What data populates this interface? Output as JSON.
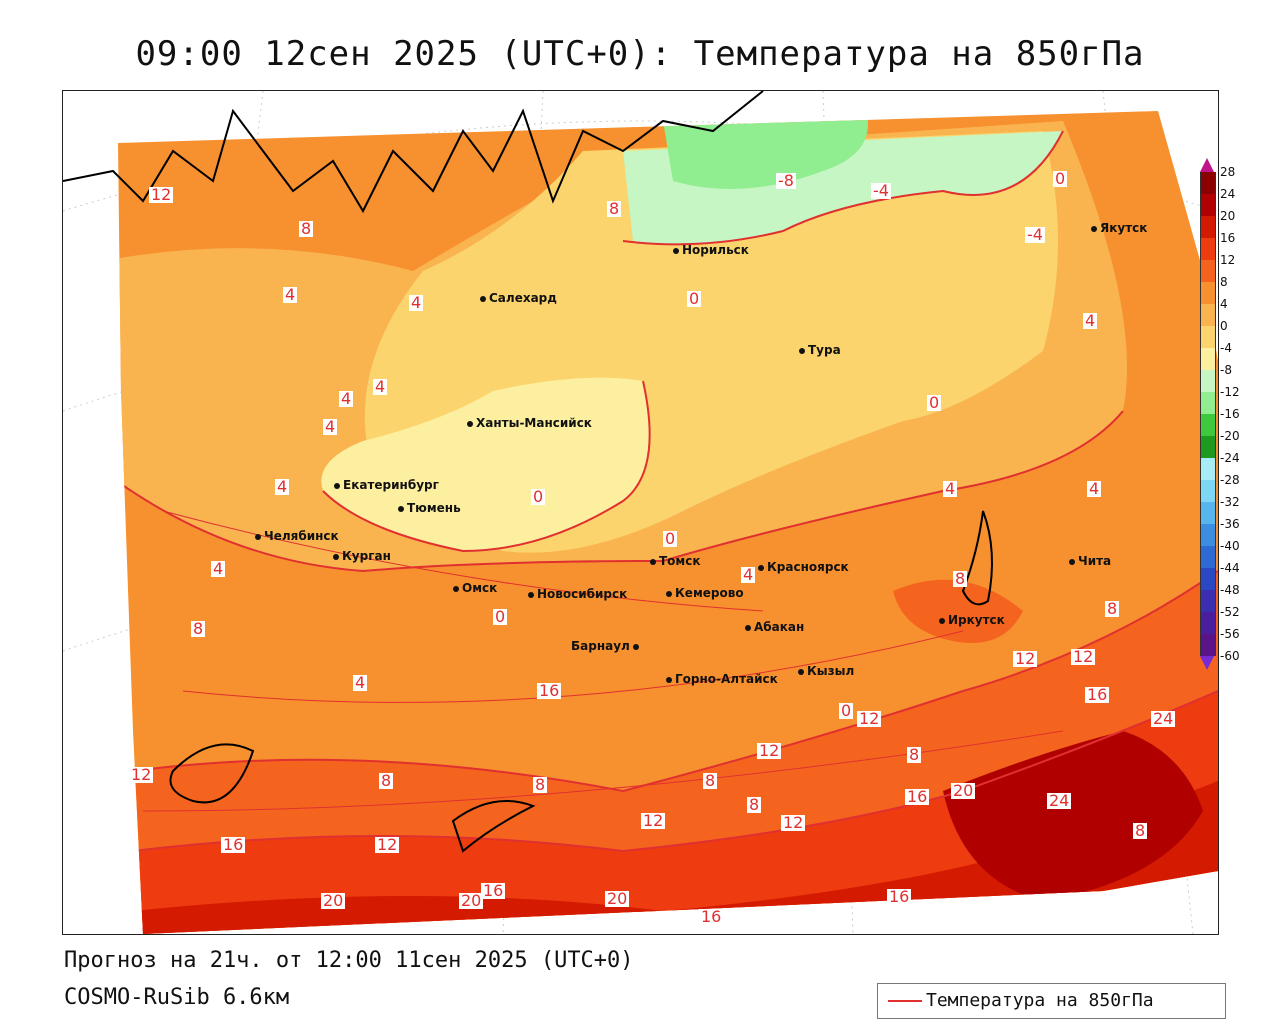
{
  "title": "09:00 12сен 2025 (UTC+0): Температура на 850гПа",
  "forecast_line": "Прогноз на 21ч. от 12:00 11сен 2025 (UTC+0)",
  "model_line": "COSMO-RuSib 6.6км",
  "legend": {
    "label": "Температура на 850гПа",
    "line_color": "#e03030"
  },
  "colorbar": {
    "ticks": [
      "28",
      "24",
      "20",
      "16",
      "12",
      "8",
      "4",
      "0",
      "-4",
      "-8",
      "-12",
      "-16",
      "-20",
      "-24",
      "-28",
      "-32",
      "-36",
      "-40",
      "-44",
      "-48",
      "-52",
      "-56",
      "-60"
    ],
    "colors": [
      "#8b0000",
      "#b00000",
      "#d41a00",
      "#ee3b10",
      "#f4641e",
      "#f7902e",
      "#f9b450",
      "#fbd46e",
      "#fdefa0",
      "#c6f6c4",
      "#90ee90",
      "#3ec83e",
      "#1e9a1e",
      "#a8ecf8",
      "#7cd6f4",
      "#58b4ec",
      "#3c8ee0",
      "#2e6ad4",
      "#2a48c4",
      "#3c2eb0",
      "#4a1e9c",
      "#5a1488"
    ]
  },
  "cities": [
    {
      "name": "Салехард"
    },
    {
      "name": "Норильск"
    },
    {
      "name": "Якутск"
    },
    {
      "name": "Тура"
    },
    {
      "name": "Ханты-Мансийск"
    },
    {
      "name": "Екатеринбург"
    },
    {
      "name": "Тюмень"
    },
    {
      "name": "Челябинск"
    },
    {
      "name": "Курган"
    },
    {
      "name": "Омск"
    },
    {
      "name": "Новосибирск"
    },
    {
      "name": "Томск"
    },
    {
      "name": "Кемерово"
    },
    {
      "name": "Красноярск"
    },
    {
      "name": "Абакан"
    },
    {
      "name": "Барнаул"
    },
    {
      "name": "Горно-Алтайск"
    },
    {
      "name": "Кызыл"
    },
    {
      "name": "Иркутск"
    },
    {
      "name": "Чита"
    }
  ],
  "contour_labels": [
    "-8",
    "-4",
    "-4",
    "0",
    "0",
    "0",
    "0",
    "0",
    "0",
    "4",
    "4",
    "4",
    "4",
    "4",
    "4",
    "4",
    "4",
    "4",
    "4",
    "4",
    "8",
    "8",
    "8",
    "8",
    "8",
    "8",
    "8",
    "8",
    "8",
    "12",
    "12",
    "12",
    "12",
    "12",
    "12",
    "12",
    "12",
    "16",
    "16",
    "16",
    "16",
    "16",
    "16",
    "20",
    "20",
    "20",
    "20",
    "24",
    "24",
    "8",
    "12",
    "0",
    "4",
    "8",
    "16"
  ],
  "colors": {
    "contour": "#e03030",
    "coast": "#000000",
    "border": "#222222"
  }
}
